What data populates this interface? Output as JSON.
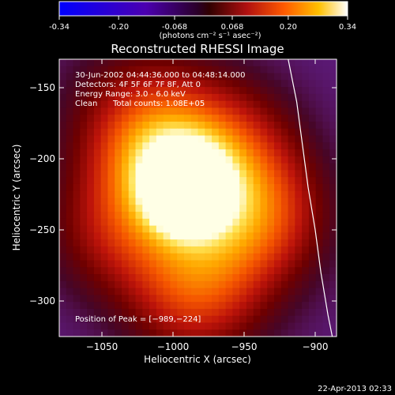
{
  "chart_data": {
    "type": "heatmap",
    "title": "Reconstructed RHESSI Image",
    "colorbar": {
      "ticks": [
        "-0.34",
        "-0.20",
        "-0.068",
        "0.068",
        "0.20",
        "0.34"
      ],
      "range": [
        -0.34,
        0.34
      ],
      "unit_label": "(photons cm⁻² s⁻¹ asec⁻²)"
    },
    "xlabel": "Heliocentric X (arcsec)",
    "ylabel": "Heliocentric Y (arcsec)",
    "xlim": [
      -1080,
      -885
    ],
    "ylim": [
      -325,
      -130
    ],
    "xticks": [
      -1050,
      -1000,
      -950,
      -900
    ],
    "xtick_labels": [
      "−1050",
      "−1000",
      "−950",
      "−900"
    ],
    "yticks": [
      -150,
      -200,
      -250,
      -300
    ],
    "ytick_labels": [
      "−150",
      "−200",
      "−250",
      "−300"
    ],
    "annotations": {
      "time_range": "30-Jun-2002 04:44:36.000 to 04:48:14.000",
      "detectors": "Detectors: 4F 5F 6F 7F 8F, Att 0",
      "energy": "Energy Range: 3.0 - 6.0 keV",
      "clean": "Clean",
      "counts": "Total counts: 1.08E+05",
      "peak": "Position of Peak = [−989,−224]"
    },
    "peak": [
      -989,
      -224
    ],
    "limb_curve": [
      [
        -919,
        -130
      ],
      [
        -913,
        -160
      ],
      [
        -909,
        -190
      ],
      [
        -905,
        -220
      ],
      [
        -900,
        -250
      ],
      [
        -896,
        -280
      ],
      [
        -891,
        -310
      ],
      [
        -888,
        -325
      ]
    ],
    "sources": [
      {
        "x": -990,
        "y": -224,
        "amp": 1.0,
        "sigma": 18
      },
      {
        "x": -1005,
        "y": -206,
        "amp": 0.55,
        "sigma": 30
      },
      {
        "x": -980,
        "y": -262,
        "amp": 0.5,
        "sigma": 40
      },
      {
        "x": -1020,
        "y": -175,
        "amp": 0.45,
        "sigma": 38
      },
      {
        "x": -960,
        "y": -195,
        "amp": 0.45,
        "sigma": 34
      },
      {
        "x": -935,
        "y": -240,
        "amp": 0.42,
        "sigma": 32
      },
      {
        "x": -985,
        "y": -300,
        "amp": 0.32,
        "sigma": 32
      },
      {
        "x": -1045,
        "y": -250,
        "amp": 0.32,
        "sigma": 32
      }
    ]
  },
  "footer": {
    "date": "22-Apr-2013 02:33"
  }
}
